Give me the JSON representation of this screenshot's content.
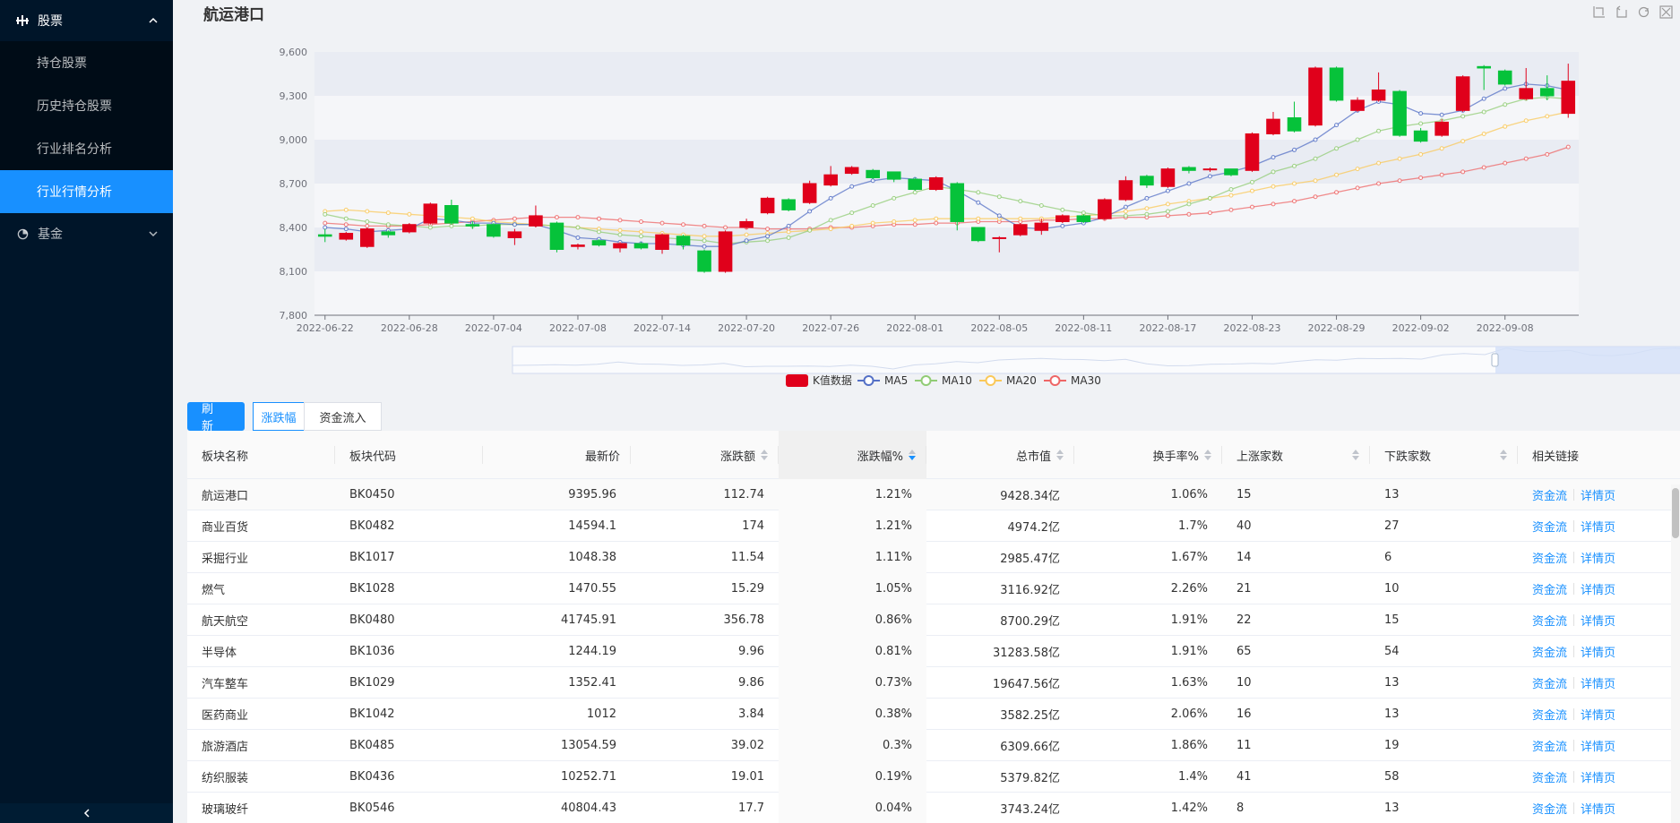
{
  "sidebar": {
    "groups": [
      {
        "label": "股票",
        "icon": "chart-bars-icon",
        "expanded": true
      },
      {
        "label": "基金",
        "icon": "pie-chart-icon",
        "expanded": false
      }
    ],
    "items": [
      "持仓股票",
      "历史持仓股票",
      "行业排名分析",
      "行业行情分析"
    ],
    "active_index": 3
  },
  "chart_title": "航运港口",
  "buttons": {
    "refresh": "刷 新",
    "tab_change": "涨跌幅",
    "tab_flow": "资金流入"
  },
  "table": {
    "headers": [
      "板块名称",
      "板块代码",
      "最新价",
      "涨跌额",
      "涨跌幅%",
      "总市值",
      "换手率%",
      "上涨家数",
      "下跌家数",
      "相关链接"
    ],
    "link_labels": [
      "资金流",
      "详情页"
    ],
    "rows": [
      [
        "航运港口",
        "BK0450",
        "9395.96",
        "112.74",
        "1.21%",
        "9428.34亿",
        "1.06%",
        "15",
        "13"
      ],
      [
        "商业百货",
        "BK0482",
        "14594.1",
        "174",
        "1.21%",
        "4974.2亿",
        "1.7%",
        "40",
        "27"
      ],
      [
        "采掘行业",
        "BK1017",
        "1048.38",
        "11.54",
        "1.11%",
        "2985.47亿",
        "1.67%",
        "14",
        "6"
      ],
      [
        "燃气",
        "BK1028",
        "1470.55",
        "15.29",
        "1.05%",
        "3116.92亿",
        "2.26%",
        "21",
        "10"
      ],
      [
        "航天航空",
        "BK0480",
        "41745.91",
        "356.78",
        "0.86%",
        "8700.29亿",
        "1.91%",
        "22",
        "15"
      ],
      [
        "半导体",
        "BK1036",
        "1244.19",
        "9.96",
        "0.81%",
        "31283.58亿",
        "1.91%",
        "65",
        "54"
      ],
      [
        "汽车整车",
        "BK1029",
        "1352.41",
        "9.86",
        "0.73%",
        "19647.56亿",
        "1.63%",
        "10",
        "13"
      ],
      [
        "医药商业",
        "BK1042",
        "1012",
        "3.84",
        "0.38%",
        "3582.25亿",
        "2.06%",
        "16",
        "13"
      ],
      [
        "旅游酒店",
        "BK0485",
        "13054.59",
        "39.02",
        "0.3%",
        "6309.66亿",
        "1.86%",
        "11",
        "19"
      ],
      [
        "纺织服装",
        "BK0436",
        "10252.71",
        "19.01",
        "0.19%",
        "5379.82亿",
        "1.4%",
        "41",
        "58"
      ],
      [
        "玻璃玻纤",
        "BK0546",
        "40804.43",
        "17.7",
        "0.04%",
        "3743.24亿",
        "1.42%",
        "8",
        "13"
      ]
    ]
  },
  "chart_data": {
    "type": "candlestick",
    "title": "航运港口",
    "ylim": [
      7800,
      9600
    ],
    "yticks": [
      "7,800",
      "8,100",
      "8,400",
      "8,700",
      "9,000",
      "9,300",
      "9,600"
    ],
    "xticks": [
      "2022-06-22",
      "2022-06-28",
      "2022-07-04",
      "2022-07-08",
      "2022-07-14",
      "2022-07-20",
      "2022-07-26",
      "2022-08-01",
      "2022-08-05",
      "2022-08-11",
      "2022-08-17",
      "2022-08-23",
      "2022-08-29",
      "2022-09-02",
      "2022-09-08"
    ],
    "legend": [
      "K值数据",
      "MA5",
      "MA10",
      "MA20",
      "MA30"
    ],
    "legend_position": "bottom",
    "colors": {
      "up": "#e0001b",
      "down": "#06c23a",
      "ma5": "#5470c6",
      "ma10": "#91cc75",
      "ma20": "#fac858",
      "ma30": "#ee6666"
    },
    "candles": [
      [
        8350,
        8340,
        8300,
        8390
      ],
      [
        8320,
        8360,
        8310,
        8370
      ],
      [
        8270,
        8390,
        8260,
        8400
      ],
      [
        8370,
        8350,
        8330,
        8380
      ],
      [
        8370,
        8420,
        8360,
        8430
      ],
      [
        8430,
        8560,
        8420,
        8570
      ],
      [
        8550,
        8430,
        8420,
        8590
      ],
      [
        8420,
        8410,
        8390,
        8440
      ],
      [
        8420,
        8340,
        8330,
        8430
      ],
      [
        8330,
        8370,
        8280,
        8390
      ],
      [
        8410,
        8480,
        8400,
        8550
      ],
      [
        8430,
        8250,
        8230,
        8440
      ],
      [
        8270,
        8280,
        8250,
        8290
      ],
      [
        8310,
        8280,
        8270,
        8320
      ],
      [
        8260,
        8290,
        8230,
        8300
      ],
      [
        8290,
        8260,
        8250,
        8300
      ],
      [
        8250,
        8350,
        8220,
        8360
      ],
      [
        8340,
        8280,
        8250,
        8350
      ],
      [
        8240,
        8100,
        8090,
        8250
      ],
      [
        8100,
        8370,
        8090,
        8380
      ],
      [
        8400,
        8440,
        8390,
        8460
      ],
      [
        8500,
        8600,
        8490,
        8610
      ],
      [
        8590,
        8520,
        8510,
        8600
      ],
      [
        8570,
        8700,
        8560,
        8720
      ],
      [
        8690,
        8760,
        8680,
        8820
      ],
      [
        8770,
        8810,
        8760,
        8820
      ],
      [
        8790,
        8740,
        8730,
        8800
      ],
      [
        8780,
        8730,
        8710,
        8780
      ],
      [
        8730,
        8660,
        8650,
        8740
      ],
      [
        8660,
        8740,
        8650,
        8750
      ],
      [
        8700,
        8440,
        8380,
        8710
      ],
      [
        8400,
        8310,
        8300,
        8400
      ],
      [
        8330,
        8330,
        8230,
        8340
      ],
      [
        8350,
        8420,
        8340,
        8430
      ],
      [
        8380,
        8430,
        8350,
        8460
      ],
      [
        8440,
        8480,
        8430,
        8490
      ],
      [
        8480,
        8440,
        8430,
        8490
      ],
      [
        8460,
        8590,
        8450,
        8600
      ],
      [
        8590,
        8720,
        8580,
        8750
      ],
      [
        8750,
        8690,
        8670,
        8760
      ],
      [
        8680,
        8800,
        8670,
        8810
      ],
      [
        8810,
        8790,
        8770,
        8820
      ],
      [
        8800,
        8800,
        8780,
        8810
      ],
      [
        8800,
        8760,
        8750,
        8790
      ],
      [
        8790,
        9040,
        8780,
        9050
      ],
      [
        9040,
        9140,
        9030,
        9190
      ],
      [
        9150,
        9060,
        9050,
        9260
      ],
      [
        9100,
        9490,
        9090,
        9500
      ],
      [
        9490,
        9270,
        9260,
        9500
      ],
      [
        9200,
        9270,
        9190,
        9290
      ],
      [
        9270,
        9340,
        9260,
        9460
      ],
      [
        9330,
        9030,
        9020,
        9340
      ],
      [
        9060,
        8990,
        8980,
        9080
      ],
      [
        9030,
        9120,
        9020,
        9140
      ],
      [
        9200,
        9430,
        9190,
        9440
      ],
      [
        9500,
        9490,
        9340,
        9510
      ],
      [
        9470,
        9380,
        9370,
        9480
      ],
      [
        9280,
        9350,
        9270,
        9490
      ],
      [
        9350,
        9300,
        9270,
        9440
      ],
      [
        9180,
        9400,
        9150,
        9520
      ]
    ],
    "ma5": [
      8400,
      8390,
      8370,
      8380,
      8390,
      8460,
      8450,
      8430,
      8430,
      8420,
      8420,
      8380,
      8330,
      8320,
      8300,
      8290,
      8290,
      8280,
      8270,
      8270,
      8310,
      8340,
      8410,
      8510,
      8600,
      8680,
      8720,
      8740,
      8730,
      8720,
      8650,
      8570,
      8480,
      8400,
      8390,
      8410,
      8430,
      8470,
      8540,
      8600,
      8650,
      8700,
      8750,
      8780,
      8820,
      8880,
      8930,
      9000,
      9100,
      9200,
      9260,
      9240,
      9180,
      9170,
      9200,
      9280,
      9350,
      9380,
      9370,
      9340
    ],
    "ma10": [
      8490,
      8460,
      8440,
      8420,
      8410,
      8400,
      8410,
      8410,
      8420,
      8420,
      8420,
      8410,
      8400,
      8370,
      8350,
      8340,
      8330,
      8320,
      8310,
      8290,
      8300,
      8310,
      8330,
      8380,
      8450,
      8500,
      8550,
      8600,
      8640,
      8680,
      8660,
      8640,
      8610,
      8580,
      8550,
      8520,
      8500,
      8480,
      8480,
      8490,
      8510,
      8560,
      8600,
      8660,
      8710,
      8780,
      8820,
      8870,
      8940,
      9000,
      9060,
      9090,
      9110,
      9130,
      9160,
      9190,
      9240,
      9280,
      9290,
      9280
    ],
    "ma20": [
      8510,
      8520,
      8510,
      8500,
      8490,
      8480,
      8470,
      8460,
      8440,
      8430,
      8420,
      8410,
      8400,
      8390,
      8380,
      8370,
      8360,
      8350,
      8340,
      8340,
      8350,
      8360,
      8370,
      8380,
      8390,
      8410,
      8430,
      8440,
      8450,
      8460,
      8460,
      8460,
      8460,
      8460,
      8460,
      8470,
      8480,
      8490,
      8510,
      8530,
      8560,
      8580,
      8600,
      8620,
      8650,
      8680,
      8700,
      8720,
      8760,
      8800,
      8840,
      8870,
      8900,
      8940,
      8990,
      9040,
      9090,
      9130,
      9160,
      9190
    ],
    "ma30": [
      8430,
      8420,
      8410,
      8410,
      8410,
      8420,
      8430,
      8440,
      8450,
      8460,
      8470,
      8470,
      8470,
      8460,
      8450,
      8440,
      8430,
      8420,
      8410,
      8400,
      8400,
      8390,
      8390,
      8390,
      8400,
      8400,
      8410,
      8420,
      8420,
      8430,
      8430,
      8440,
      8440,
      8440,
      8450,
      8450,
      8460,
      8460,
      8470,
      8470,
      8480,
      8490,
      8500,
      8520,
      8540,
      8560,
      8580,
      8610,
      8640,
      8670,
      8700,
      8720,
      8740,
      8760,
      8780,
      8810,
      8840,
      8870,
      8900,
      8950
    ]
  }
}
